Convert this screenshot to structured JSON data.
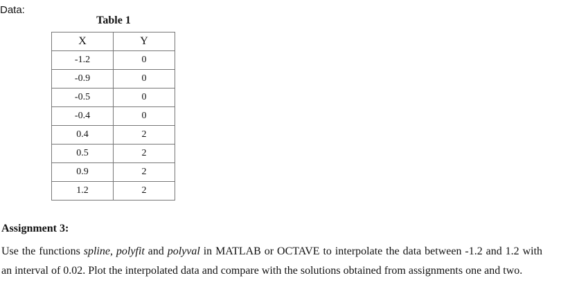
{
  "data_label": "Data:",
  "table": {
    "caption": "Table 1",
    "headers": [
      "X",
      "Y"
    ],
    "rows": [
      [
        "-1.2",
        "0"
      ],
      [
        "-0.9",
        "0"
      ],
      [
        "-0.5",
        "0"
      ],
      [
        "-0.4",
        "0"
      ],
      [
        "0.4",
        "2"
      ],
      [
        "0.5",
        "2"
      ],
      [
        "0.9",
        "2"
      ],
      [
        "1.2",
        "2"
      ]
    ]
  },
  "assignment": {
    "heading": "Assignment 3:",
    "parts": [
      "Use the functions ",
      "spline",
      ", ",
      "polyfit",
      " and ",
      "polyval",
      " in MATLAB or OCTAVE to interpolate the data between -1.2 and 1.2 with an interval of 0.02. Plot the interpolated data and compare with the solutions obtained from assignments one and two."
    ]
  }
}
